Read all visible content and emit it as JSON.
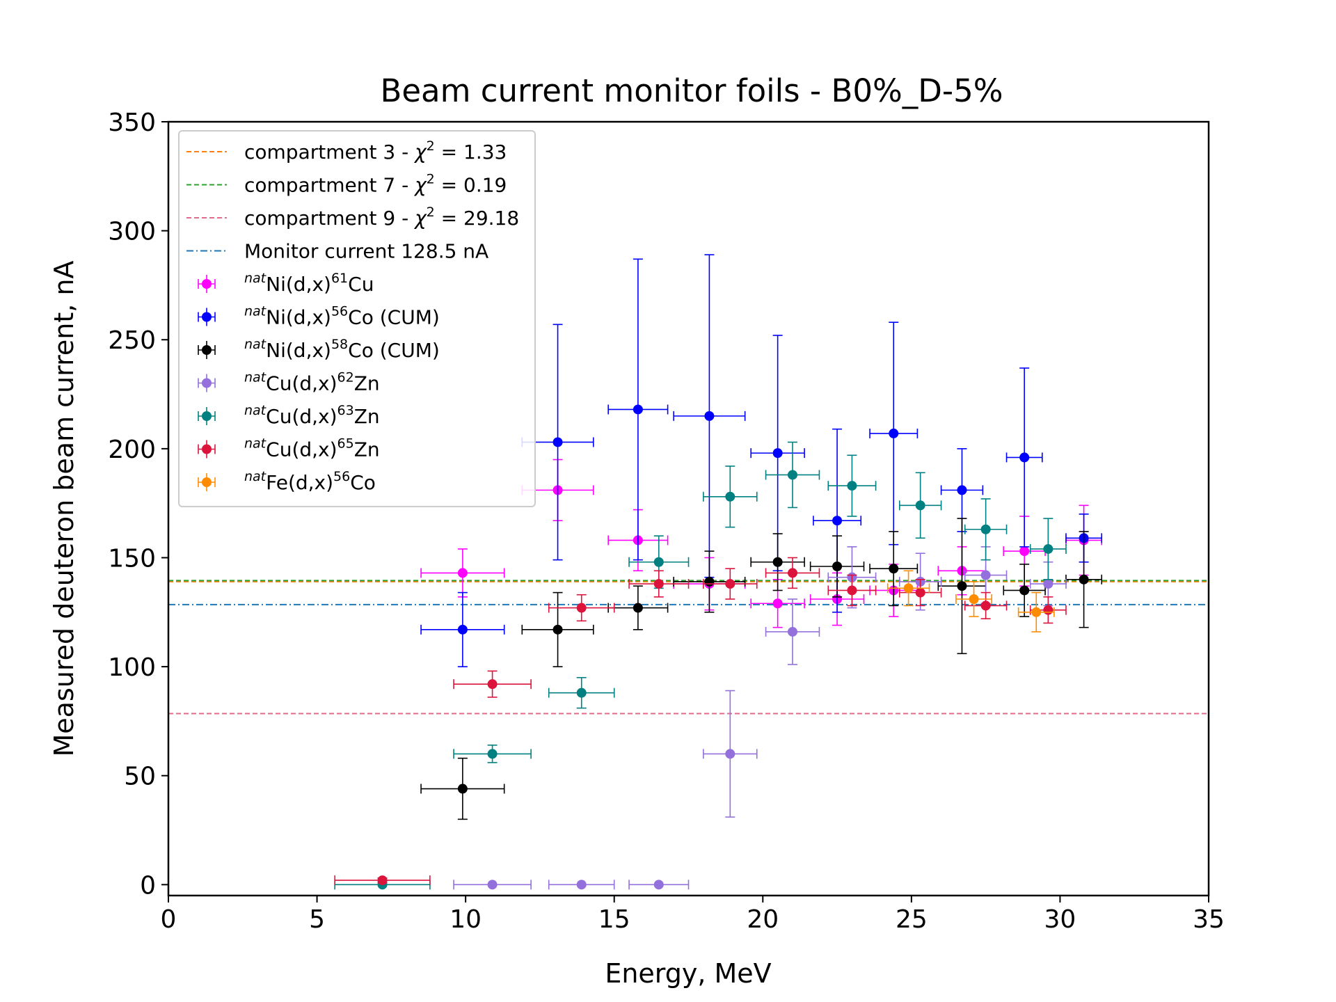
{
  "chart_data": {
    "type": "scatter",
    "title": "Beam current monitor foils - B0%_D-5%",
    "xlabel": "Energy, MeV",
    "ylabel": "Measured deuteron beam current, nA",
    "xlim": [
      0,
      35
    ],
    "ylim": [
      -5,
      350
    ],
    "xticks": [
      0,
      5,
      10,
      15,
      20,
      25,
      30,
      35
    ],
    "yticks": [
      0,
      50,
      100,
      150,
      200,
      250,
      300,
      350
    ],
    "grid": false,
    "legend_position": "top-left",
    "hlines": [
      {
        "label": "compartment 3 - ",
        "chi": "χ",
        "sup": "2",
        "value_text": " = 1.33",
        "y": 139,
        "color": "#ff7f0e",
        "style": "dashed"
      },
      {
        "label": "compartment 7 - ",
        "chi": "χ",
        "sup": "2",
        "value_text": " = 0.19",
        "y": 139.5,
        "color": "#2ca02c",
        "style": "dashed"
      },
      {
        "label": "compartment 9 - ",
        "chi": "χ",
        "sup": "2",
        "value_text": " = 29.18",
        "y": 78.5,
        "color": "#e06b8b",
        "style": "dashed"
      },
      {
        "label": "Monitor current 128.5 nA",
        "chi": "",
        "sup": "",
        "value_text": "",
        "y": 128.5,
        "color": "#1f77b4",
        "style": "dashdot"
      }
    ],
    "series": [
      {
        "name_pre": "nat",
        "name_a": "Ni(d,x)",
        "name_sup": "61",
        "name_b": "Cu",
        "color": "#ff00ff",
        "points": [
          {
            "x": 9.9,
            "y": 143,
            "xerr": 1.4,
            "yerr": 11
          },
          {
            "x": 13.1,
            "y": 181,
            "xerr": 1.2,
            "yerr": 14
          },
          {
            "x": 15.8,
            "y": 158,
            "xerr": 1.0,
            "yerr": 14
          },
          {
            "x": 18.2,
            "y": 138,
            "xerr": 1.2,
            "yerr": 12
          },
          {
            "x": 20.5,
            "y": 129,
            "xerr": 0.9,
            "yerr": 11
          },
          {
            "x": 22.5,
            "y": 131,
            "xerr": 0.9,
            "yerr": 12
          },
          {
            "x": 24.4,
            "y": 135,
            "xerr": 0.8,
            "yerr": 12
          },
          {
            "x": 26.7,
            "y": 144,
            "xerr": 0.8,
            "yerr": 11
          },
          {
            "x": 28.8,
            "y": 153,
            "xerr": 0.7,
            "yerr": 16
          },
          {
            "x": 30.8,
            "y": 158,
            "xerr": 0.6,
            "yerr": 16
          }
        ]
      },
      {
        "name_pre": "nat",
        "name_a": "Ni(d,x)",
        "name_sup": "56",
        "name_b": "Co (CUM)",
        "color": "#0000ff",
        "points": [
          {
            "x": 9.9,
            "y": 117,
            "xerr": 1.4,
            "yerr": 17
          },
          {
            "x": 13.1,
            "y": 203,
            "xerr": 1.2,
            "yerr": 54
          },
          {
            "x": 15.8,
            "y": 218,
            "xerr": 1.0,
            "yerr": 69
          },
          {
            "x": 18.2,
            "y": 215,
            "xerr": 1.2,
            "yerr": 74
          },
          {
            "x": 20.5,
            "y": 198,
            "xerr": 0.9,
            "yerr": 54
          },
          {
            "x": 22.5,
            "y": 167,
            "xerr": 0.8,
            "yerr": 42
          },
          {
            "x": 24.4,
            "y": 207,
            "xerr": 0.8,
            "yerr": 51
          },
          {
            "x": 26.7,
            "y": 181,
            "xerr": 0.7,
            "yerr": 19
          },
          {
            "x": 28.8,
            "y": 196,
            "xerr": 0.6,
            "yerr": 41
          },
          {
            "x": 30.8,
            "y": 159,
            "xerr": 0.6,
            "yerr": 11
          }
        ]
      },
      {
        "name_pre": "nat",
        "name_a": "Ni(d,x)",
        "name_sup": "58",
        "name_b": "Co (CUM)",
        "color": "#000000",
        "points": [
          {
            "x": 9.9,
            "y": 44,
            "xerr": 1.4,
            "yerr": 14
          },
          {
            "x": 13.1,
            "y": 117,
            "xerr": 1.2,
            "yerr": 17
          },
          {
            "x": 15.8,
            "y": 127,
            "xerr": 1.0,
            "yerr": 10
          },
          {
            "x": 18.2,
            "y": 139,
            "xerr": 1.2,
            "yerr": 14
          },
          {
            "x": 20.5,
            "y": 148,
            "xerr": 0.9,
            "yerr": 13
          },
          {
            "x": 22.5,
            "y": 146,
            "xerr": 0.9,
            "yerr": 14
          },
          {
            "x": 24.4,
            "y": 145,
            "xerr": 0.8,
            "yerr": 17
          },
          {
            "x": 26.7,
            "y": 137,
            "xerr": 0.8,
            "yerr": 31
          },
          {
            "x": 28.8,
            "y": 135,
            "xerr": 0.7,
            "yerr": 12
          },
          {
            "x": 30.8,
            "y": 140,
            "xerr": 0.6,
            "yerr": 22
          }
        ]
      },
      {
        "name_pre": "nat",
        "name_a": "Cu(d,x)",
        "name_sup": "62",
        "name_b": "Zn",
        "color": "#9370db",
        "points": [
          {
            "x": 10.9,
            "y": 0,
            "xerr": 1.3,
            "yerr": 0
          },
          {
            "x": 13.9,
            "y": 0,
            "xerr": 1.1,
            "yerr": 0
          },
          {
            "x": 16.5,
            "y": 0,
            "xerr": 1.0,
            "yerr": 0
          },
          {
            "x": 18.9,
            "y": 60,
            "xerr": 0.9,
            "yerr": 29
          },
          {
            "x": 21.0,
            "y": 116,
            "xerr": 0.9,
            "yerr": 15
          },
          {
            "x": 23.0,
            "y": 141,
            "xerr": 0.8,
            "yerr": 14
          },
          {
            "x": 25.3,
            "y": 139,
            "xerr": 0.7,
            "yerr": 13
          },
          {
            "x": 27.5,
            "y": 142,
            "xerr": 0.7,
            "yerr": 13
          },
          {
            "x": 29.6,
            "y": 138,
            "xerr": 0.6,
            "yerr": 10
          }
        ]
      },
      {
        "name_pre": "nat",
        "name_a": "Cu(d,x)",
        "name_sup": "63",
        "name_b": "Zn",
        "color": "#008080",
        "points": [
          {
            "x": 7.2,
            "y": 0,
            "xerr": 1.6,
            "yerr": 0
          },
          {
            "x": 10.9,
            "y": 60,
            "xerr": 1.3,
            "yerr": 4
          },
          {
            "x": 13.9,
            "y": 88,
            "xerr": 1.1,
            "yerr": 7
          },
          {
            "x": 16.5,
            "y": 148,
            "xerr": 1.0,
            "yerr": 12
          },
          {
            "x": 18.9,
            "y": 178,
            "xerr": 0.9,
            "yerr": 14
          },
          {
            "x": 21.0,
            "y": 188,
            "xerr": 0.9,
            "yerr": 15
          },
          {
            "x": 23.0,
            "y": 183,
            "xerr": 0.8,
            "yerr": 14
          },
          {
            "x": 25.3,
            "y": 174,
            "xerr": 0.7,
            "yerr": 15
          },
          {
            "x": 27.5,
            "y": 163,
            "xerr": 0.7,
            "yerr": 14
          },
          {
            "x": 29.6,
            "y": 154,
            "xerr": 0.6,
            "yerr": 14
          }
        ]
      },
      {
        "name_pre": "nat",
        "name_a": "Cu(d,x)",
        "name_sup": "65",
        "name_b": "Zn",
        "color": "#dc143c",
        "points": [
          {
            "x": 7.2,
            "y": 2,
            "xerr": 1.6,
            "yerr": 1
          },
          {
            "x": 10.9,
            "y": 92,
            "xerr": 1.3,
            "yerr": 6
          },
          {
            "x": 13.9,
            "y": 127,
            "xerr": 1.1,
            "yerr": 6
          },
          {
            "x": 16.5,
            "y": 138,
            "xerr": 1.0,
            "yerr": 6
          },
          {
            "x": 18.9,
            "y": 138,
            "xerr": 0.9,
            "yerr": 7
          },
          {
            "x": 21.0,
            "y": 143,
            "xerr": 0.9,
            "yerr": 7
          },
          {
            "x": 23.0,
            "y": 135,
            "xerr": 0.8,
            "yerr": 7
          },
          {
            "x": 25.3,
            "y": 134,
            "xerr": 0.7,
            "yerr": 6
          },
          {
            "x": 27.5,
            "y": 128,
            "xerr": 0.7,
            "yerr": 6
          },
          {
            "x": 29.6,
            "y": 126,
            "xerr": 0.6,
            "yerr": 6
          }
        ]
      },
      {
        "name_pre": "nat",
        "name_a": "Fe(d,x)",
        "name_sup": "56",
        "name_b": "Co",
        "color": "#ff8c00",
        "points": [
          {
            "x": 24.9,
            "y": 136,
            "xerr": 0.7,
            "yerr": 8
          },
          {
            "x": 27.1,
            "y": 131,
            "xerr": 0.6,
            "yerr": 8
          },
          {
            "x": 29.2,
            "y": 125,
            "xerr": 0.6,
            "yerr": 9
          }
        ]
      }
    ]
  }
}
